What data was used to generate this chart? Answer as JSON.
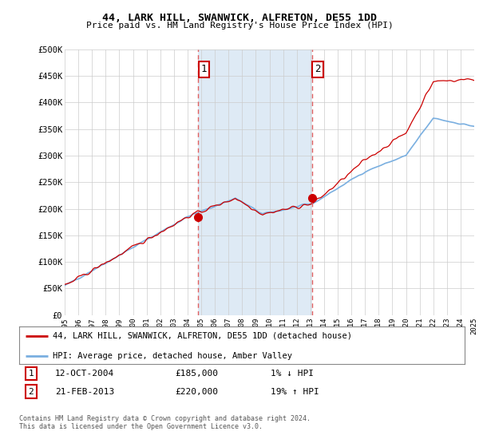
{
  "title": "44, LARK HILL, SWANWICK, ALFRETON, DE55 1DD",
  "subtitle": "Price paid vs. HM Land Registry's House Price Index (HPI)",
  "ylabel_ticks": [
    "£0",
    "£50K",
    "£100K",
    "£150K",
    "£200K",
    "£250K",
    "£300K",
    "£350K",
    "£400K",
    "£450K",
    "£500K"
  ],
  "ytick_values": [
    0,
    50000,
    100000,
    150000,
    200000,
    250000,
    300000,
    350000,
    400000,
    450000,
    500000
  ],
  "xlim_start": 1995,
  "xlim_end": 2025,
  "ylim_top": 500000,
  "sale1_date": 2004.78,
  "sale1_price": 185000,
  "sale1_label": "1",
  "sale1_text": "12-OCT-2004",
  "sale1_amount": "£185,000",
  "sale1_hpi": "1% ↓ HPI",
  "sale2_date": 2013.12,
  "sale2_price": 220000,
  "sale2_label": "2",
  "sale2_text": "21-FEB-2013",
  "sale2_amount": "£220,000",
  "sale2_hpi": "19% ↑ HPI",
  "hpi_color": "#7aafe0",
  "price_color": "#cc0000",
  "vline_color": "#e06060",
  "shade_color": "#deeaf5",
  "background_color": "#ffffff",
  "grid_color": "#cccccc",
  "legend_label_price": "44, LARK HILL, SWANWICK, ALFRETON, DE55 1DD (detached house)",
  "legend_label_hpi": "HPI: Average price, detached house, Amber Valley",
  "footnote": "Contains HM Land Registry data © Crown copyright and database right 2024.\nThis data is licensed under the Open Government Licence v3.0.",
  "xtick_years": [
    1995,
    1996,
    1997,
    1998,
    1999,
    2000,
    2001,
    2002,
    2003,
    2004,
    2005,
    2006,
    2007,
    2008,
    2009,
    2010,
    2011,
    2012,
    2013,
    2014,
    2015,
    2016,
    2017,
    2018,
    2019,
    2020,
    2021,
    2022,
    2023,
    2024,
    2025
  ]
}
